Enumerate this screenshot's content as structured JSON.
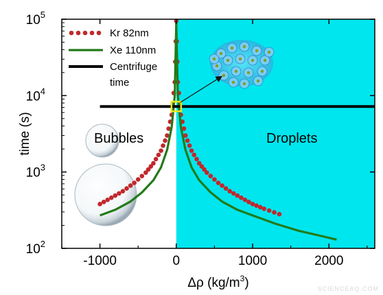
{
  "chart_data": {
    "type": "line",
    "xlabel_base": "Δρ (kg/m",
    "xlabel_sup": "3",
    "xlabel_tail": ")",
    "ylabel": "time (s)",
    "xlim": [
      -1500,
      2600
    ],
    "ylim": [
      100,
      100000
    ],
    "yscale": "log",
    "x_ticks": [
      {
        "value": -1000,
        "label": "-1000"
      },
      {
        "value": 0,
        "label": "0"
      },
      {
        "value": 1000,
        "label": "1000"
      },
      {
        "value": 2000,
        "label": "2000"
      }
    ],
    "y_ticks": [
      {
        "value": 100,
        "base": "10",
        "exp": "2"
      },
      {
        "value": 1000,
        "base": "10",
        "exp": "3"
      },
      {
        "value": 10000,
        "base": "10",
        "exp": "4"
      },
      {
        "value": 100000,
        "base": "10",
        "exp": "5"
      }
    ],
    "series": [
      {
        "name": "Kr 82nm",
        "style": "dotted",
        "color": "#c0282d",
        "x": [
          -1000,
          -850,
          -700,
          -550,
          -400,
          -300,
          -200,
          -120,
          -60,
          -20,
          0,
          20,
          60,
          120,
          200,
          300,
          400,
          550,
          700,
          850,
          1000,
          1150,
          1350
        ],
        "y": [
          380,
          460,
          560,
          720,
          980,
          1300,
          1900,
          3000,
          5600,
          15000,
          95000,
          15000,
          5600,
          3000,
          1900,
          1300,
          980,
          720,
          560,
          460,
          380,
          330,
          280
        ]
      },
      {
        "name": "Xe 110nm",
        "style": "solid",
        "color": "#237a1a",
        "x": [
          -1000,
          -800,
          -600,
          -450,
          -300,
          -200,
          -120,
          -60,
          -20,
          0,
          20,
          60,
          120,
          200,
          300,
          450,
          600,
          800,
          1000,
          1300,
          1600,
          1900,
          2100
        ],
        "y": [
          270,
          320,
          410,
          540,
          780,
          1150,
          1950,
          3900,
          10000,
          90000,
          10000,
          3900,
          1950,
          1150,
          780,
          540,
          410,
          320,
          270,
          210,
          170,
          145,
          130
        ]
      },
      {
        "name": "Centrifuge time",
        "style": "solid",
        "color": "#000000",
        "x": [
          -1000,
          2600
        ],
        "y": [
          7200,
          7200
        ]
      }
    ],
    "legend": {
      "placement": "top-left",
      "entries": [
        {
          "line1": "Kr 82nm",
          "line2": ""
        },
        {
          "line1": "Xe 110nm",
          "line2": ""
        },
        {
          "line1": "Centrifuge",
          "line2": " time"
        }
      ]
    },
    "regions": [
      {
        "label": "Bubbles",
        "x_range": [
          -1500,
          0
        ],
        "color": "#ffffff"
      },
      {
        "label": "Droplets",
        "x_range": [
          0,
          2600
        ],
        "color": "#00e6ee"
      }
    ],
    "highlight": {
      "x": 0,
      "y": 7200,
      "color": "#e8e81a"
    },
    "watermark": "SCIENCEAQ.COM"
  }
}
